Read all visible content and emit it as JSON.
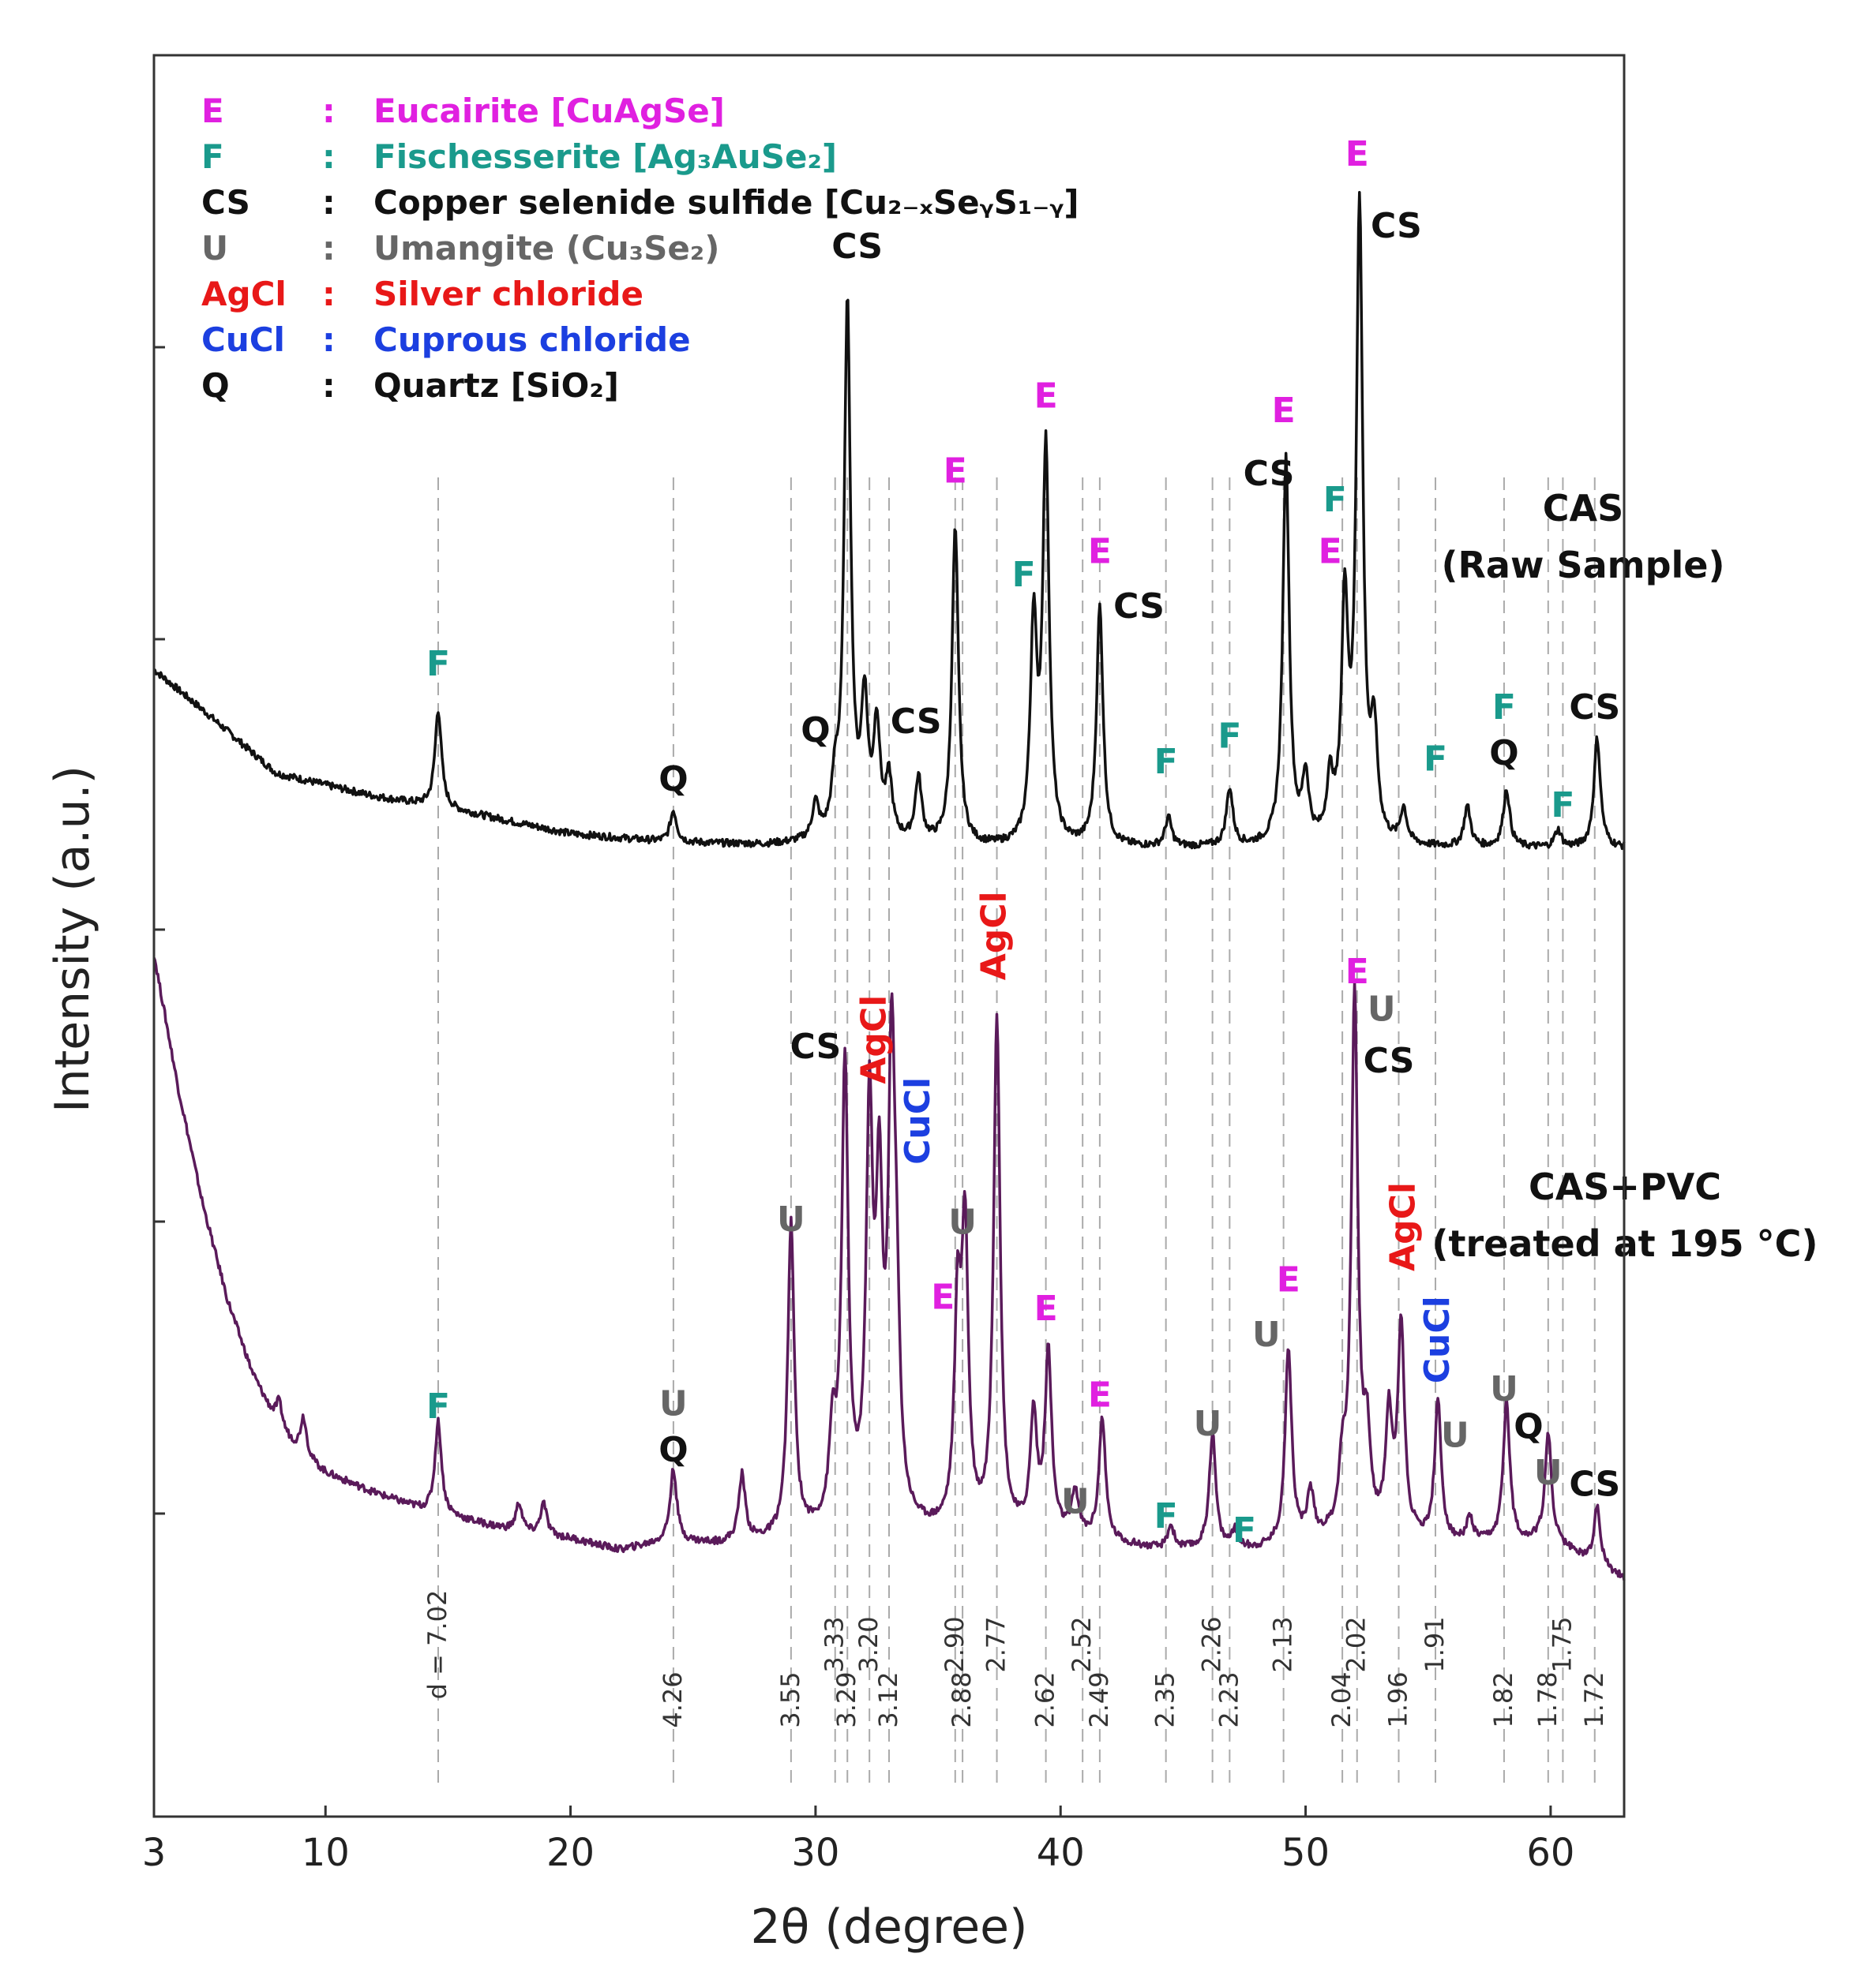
{
  "chart_data": {
    "type": "line",
    "xlabel": "2θ (degree)",
    "ylabel": "Intensity (a.u.)",
    "xlim": [
      3,
      63
    ],
    "x_ticks": [
      "3",
      "10",
      "20",
      "30",
      "40",
      "50",
      "60"
    ],
    "colors": {
      "E": "#e020e0",
      "F": "#1a9a8c",
      "CS": "#111111",
      "U": "#666666",
      "AgCl": "#e81818",
      "CuCl": "#1c3fe0",
      "Q": "#111111",
      "raw": "#111111",
      "treated": "#5a1a5a"
    },
    "legend": [
      {
        "code": "E",
        "sep": ":",
        "name": "Eucairite [CuAgSe]",
        "key": "E"
      },
      {
        "code": "F",
        "sep": ":",
        "name": "Fischesserite [Ag₃AuSe₂]",
        "key": "F"
      },
      {
        "code": "CS",
        "sep": ":",
        "name": "Copper selenide sulfide [Cu₂₋ₓSeᵧS₁₋ᵧ]",
        "key": "CS"
      },
      {
        "code": "U",
        "sep": ":",
        "name": "Umangite (Cu₃Se₂)",
        "key": "U"
      },
      {
        "code": "AgCl",
        "sep": ":",
        "name": "Silver chloride",
        "key": "AgCl"
      },
      {
        "code": "CuCl",
        "sep": ":",
        "name": "Cuprous chloride",
        "key": "CuCl"
      },
      {
        "code": "Q",
        "sep": ":",
        "name": "Quartz [SiO₂]",
        "key": "Q"
      }
    ],
    "series": [
      {
        "name": "CAS (Raw Sample)",
        "label_line1": "CAS",
        "label_line2": "(Raw Sample)",
        "baseline": [
          [
            3,
            0.62
          ],
          [
            5,
            0.48
          ],
          [
            8,
            0.26
          ],
          [
            12,
            0.18
          ],
          [
            16,
            0.12
          ],
          [
            20,
            0.05
          ],
          [
            24,
            0.02
          ],
          [
            28,
            0.01
          ],
          [
            32,
            0.02
          ],
          [
            36,
            0.0
          ],
          [
            40,
            0.0
          ],
          [
            44,
            0.0
          ],
          [
            48,
            0.0
          ],
          [
            52,
            0.0
          ],
          [
            56,
            0.0
          ],
          [
            60,
            0.0
          ],
          [
            63,
            0.0
          ]
        ],
        "peaks": [
          [
            14.6,
            0.34
          ],
          [
            24.2,
            0.11
          ],
          [
            30.0,
            0.12
          ],
          [
            30.8,
            0.16
          ],
          [
            31.3,
            1.85
          ],
          [
            32.0,
            0.45
          ],
          [
            32.5,
            0.38
          ],
          [
            33.0,
            0.2
          ],
          [
            34.2,
            0.22
          ],
          [
            35.7,
            1.1
          ],
          [
            38.9,
            0.75
          ],
          [
            39.4,
            1.36
          ],
          [
            41.6,
            0.83
          ],
          [
            44.4,
            0.1
          ],
          [
            46.9,
            0.2
          ],
          [
            49.2,
            1.34
          ],
          [
            50.0,
            0.22
          ],
          [
            51.0,
            0.2
          ],
          [
            51.6,
            0.8
          ],
          [
            52.2,
            2.2
          ],
          [
            52.8,
            0.35
          ],
          [
            54.0,
            0.12
          ],
          [
            56.6,
            0.14
          ],
          [
            58.2,
            0.2
          ],
          [
            60.3,
            0.06
          ],
          [
            61.9,
            0.38
          ]
        ],
        "line_label_offset": 0
      },
      {
        "name": "CAS+PVC (treated at 195 °C)",
        "label_line1": "CAS+PVC",
        "label_line2": "(treated at 195 °C)",
        "baseline": [
          [
            3,
            2.07
          ],
          [
            4,
            1.6
          ],
          [
            5,
            1.2
          ],
          [
            6,
            0.87
          ],
          [
            7,
            0.62
          ],
          [
            8,
            0.44
          ],
          [
            9,
            0.33
          ],
          [
            10,
            0.27
          ],
          [
            12,
            0.2
          ],
          [
            14,
            0.14
          ],
          [
            16,
            0.1
          ],
          [
            18,
            0.06
          ],
          [
            20,
            0.04
          ],
          [
            22,
            0.0
          ],
          [
            24,
            0.03
          ],
          [
            26,
            0.02
          ],
          [
            28,
            0.03
          ],
          [
            32,
            0.08
          ],
          [
            36,
            0.05
          ],
          [
            40,
            0.05
          ],
          [
            44,
            0.0
          ],
          [
            48,
            0.0
          ],
          [
            52,
            0.05
          ],
          [
            56,
            0.02
          ],
          [
            60,
            0.03
          ],
          [
            63,
            -0.1
          ]
        ],
        "peaks": [
          [
            8.1,
            0.09
          ],
          [
            9.1,
            0.14
          ],
          [
            14.6,
            0.32
          ],
          [
            17.9,
            0.1
          ],
          [
            18.9,
            0.11
          ],
          [
            24.2,
            0.25
          ],
          [
            27.0,
            0.23
          ],
          [
            29.0,
            1.08
          ],
          [
            30.7,
            0.3
          ],
          [
            31.2,
            1.58
          ],
          [
            32.2,
            1.36
          ],
          [
            32.6,
            1.05
          ],
          [
            33.1,
            1.5
          ],
          [
            33.3,
            0.55
          ],
          [
            35.8,
            0.72
          ],
          [
            36.1,
            1.0
          ],
          [
            37.4,
            1.78
          ],
          [
            38.9,
            0.4
          ],
          [
            39.5,
            0.62
          ],
          [
            40.6,
            0.15
          ],
          [
            41.7,
            0.42
          ],
          [
            44.5,
            0.08
          ],
          [
            46.2,
            0.4
          ],
          [
            47.1,
            0.06
          ],
          [
            49.3,
            0.68
          ],
          [
            50.2,
            0.16
          ],
          [
            51.5,
            0.2
          ],
          [
            52.0,
            1.86
          ],
          [
            52.5,
            0.3
          ],
          [
            53.4,
            0.4
          ],
          [
            53.9,
            0.73
          ],
          [
            55.4,
            0.48
          ],
          [
            56.7,
            0.08
          ],
          [
            58.2,
            0.49
          ],
          [
            59.9,
            0.37
          ],
          [
            61.9,
            0.2
          ]
        ],
        "line_label_offset": 1
      }
    ],
    "d_spacings": [
      {
        "x": 14.6,
        "text": "d = 7.02",
        "row": 0
      },
      {
        "x": 24.2,
        "text": "4.26",
        "row": 1
      },
      {
        "x": 29.0,
        "text": "3.55",
        "row": 1
      },
      {
        "x": 30.8,
        "text": "3.33",
        "row": 0
      },
      {
        "x": 31.3,
        "text": "3.29",
        "row": 1
      },
      {
        "x": 32.2,
        "text": "3.20",
        "row": 0
      },
      {
        "x": 33.0,
        "text": "3.12",
        "row": 1
      },
      {
        "x": 35.7,
        "text": "2.90",
        "row": 0
      },
      {
        "x": 36.0,
        "text": "2.88",
        "row": 1
      },
      {
        "x": 37.4,
        "text": "2.77",
        "row": 0
      },
      {
        "x": 39.4,
        "text": "2.62",
        "row": 1
      },
      {
        "x": 40.9,
        "text": "2.52",
        "row": 0
      },
      {
        "x": 41.6,
        "text": "2.49",
        "row": 1
      },
      {
        "x": 44.3,
        "text": "2.35",
        "row": 1
      },
      {
        "x": 46.2,
        "text": "2.26",
        "row": 0
      },
      {
        "x": 46.9,
        "text": "2.23",
        "row": 1
      },
      {
        "x": 49.1,
        "text": "2.13",
        "row": 0
      },
      {
        "x": 51.5,
        "text": "2.04",
        "row": 1
      },
      {
        "x": 52.1,
        "text": "2.02",
        "row": 0
      },
      {
        "x": 53.8,
        "text": "1.96",
        "row": 1
      },
      {
        "x": 55.3,
        "text": "1.91",
        "row": 0
      },
      {
        "x": 58.1,
        "text": "1.82",
        "row": 1
      },
      {
        "x": 59.9,
        "text": "1.78",
        "row": 1
      },
      {
        "x": 60.5,
        "text": "1.75",
        "row": 0
      },
      {
        "x": 61.8,
        "text": "1.72",
        "row": 1
      }
    ],
    "peak_labels": [
      {
        "series": 0,
        "x": 14.6,
        "y": 0.6,
        "text": "F",
        "key": "F"
      },
      {
        "series": 0,
        "x": 24.2,
        "y": 0.2,
        "text": "Q",
        "key": "Q"
      },
      {
        "series": 0,
        "x": 30.0,
        "y": 0.37,
        "text": "Q",
        "key": "Q"
      },
      {
        "series": 0,
        "x": 31.7,
        "y": 2.05,
        "text": "CS",
        "key": "CS"
      },
      {
        "series": 0,
        "x": 34.1,
        "y": 0.4,
        "text": "CS",
        "key": "CS"
      },
      {
        "series": 0,
        "x": 35.7,
        "y": 1.27,
        "text": "E",
        "key": "E"
      },
      {
        "series": 0,
        "x": 38.5,
        "y": 0.91,
        "text": "F",
        "key": "F"
      },
      {
        "series": 0,
        "x": 39.4,
        "y": 1.53,
        "text": "E",
        "key": "E"
      },
      {
        "series": 0,
        "x": 41.6,
        "y": 0.99,
        "text": "E",
        "key": "E"
      },
      {
        "series": 0,
        "x": 43.2,
        "y": 0.8,
        "text": "CS",
        "key": "CS"
      },
      {
        "series": 0,
        "x": 44.3,
        "y": 0.26,
        "text": "F",
        "key": "F"
      },
      {
        "series": 0,
        "x": 46.9,
        "y": 0.35,
        "text": "F",
        "key": "F"
      },
      {
        "series": 0,
        "x": 48.5,
        "y": 1.26,
        "text": "CS",
        "key": "CS"
      },
      {
        "series": 0,
        "x": 49.1,
        "y": 1.48,
        "text": "E",
        "key": "E"
      },
      {
        "series": 0,
        "x": 51.2,
        "y": 1.17,
        "text": "F",
        "key": "F"
      },
      {
        "series": 0,
        "x": 51.0,
        "y": 0.99,
        "text": "E",
        "key": "E"
      },
      {
        "series": 0,
        "x": 52.1,
        "y": 2.37,
        "text": "E",
        "key": "E"
      },
      {
        "series": 0,
        "x": 53.7,
        "y": 2.12,
        "text": "CS",
        "key": "CS"
      },
      {
        "series": 0,
        "x": 55.3,
        "y": 0.27,
        "text": "F",
        "key": "F"
      },
      {
        "series": 0,
        "x": 58.1,
        "y": 0.45,
        "text": "F",
        "key": "F"
      },
      {
        "series": 0,
        "x": 58.1,
        "y": 0.29,
        "text": "Q",
        "key": "Q"
      },
      {
        "series": 0,
        "x": 60.5,
        "y": 0.11,
        "text": "F",
        "key": "F"
      },
      {
        "series": 0,
        "x": 61.8,
        "y": 0.45,
        "text": "CS",
        "key": "CS"
      },
      {
        "series": 1,
        "x": 14.6,
        "y": 0.46,
        "text": "F",
        "key": "F"
      },
      {
        "series": 1,
        "x": 24.2,
        "y": 0.47,
        "text": "U",
        "key": "U"
      },
      {
        "series": 1,
        "x": 24.2,
        "y": 0.31,
        "text": "Q",
        "key": "Q"
      },
      {
        "series": 1,
        "x": 29.0,
        "y": 1.11,
        "text": "U",
        "key": "U"
      },
      {
        "series": 1,
        "x": 30.0,
        "y": 1.71,
        "text": "CS",
        "key": "CS"
      },
      {
        "series": 1,
        "x": 35.2,
        "y": 0.84,
        "text": "E",
        "key": "E"
      },
      {
        "series": 1,
        "x": 36.0,
        "y": 1.1,
        "text": "U",
        "key": "U"
      },
      {
        "series": 1,
        "x": 39.4,
        "y": 0.8,
        "text": "E",
        "key": "E"
      },
      {
        "series": 1,
        "x": 40.6,
        "y": 0.13,
        "text": "U",
        "key": "U"
      },
      {
        "series": 1,
        "x": 41.6,
        "y": 0.5,
        "text": "E",
        "key": "E"
      },
      {
        "series": 1,
        "x": 44.3,
        "y": 0.08,
        "text": "F",
        "key": "F"
      },
      {
        "series": 1,
        "x": 46.0,
        "y": 0.4,
        "text": "U",
        "key": "U"
      },
      {
        "series": 1,
        "x": 47.5,
        "y": 0.03,
        "text": "F",
        "key": "F"
      },
      {
        "series": 1,
        "x": 48.4,
        "y": 0.71,
        "text": "U",
        "key": "U"
      },
      {
        "series": 1,
        "x": 49.3,
        "y": 0.9,
        "text": "E",
        "key": "E"
      },
      {
        "series": 1,
        "x": 52.1,
        "y": 1.97,
        "text": "E",
        "key": "E"
      },
      {
        "series": 1,
        "x": 53.1,
        "y": 1.84,
        "text": "U",
        "key": "U"
      },
      {
        "series": 1,
        "x": 53.4,
        "y": 1.66,
        "text": "CS",
        "key": "CS"
      },
      {
        "series": 1,
        "x": 56.1,
        "y": 0.36,
        "text": "U",
        "key": "U"
      },
      {
        "series": 1,
        "x": 58.1,
        "y": 0.52,
        "text": "U",
        "key": "U"
      },
      {
        "series": 1,
        "x": 59.1,
        "y": 0.39,
        "text": "Q",
        "key": "Q"
      },
      {
        "series": 1,
        "x": 59.9,
        "y": 0.23,
        "text": "U",
        "key": "U"
      },
      {
        "series": 1,
        "x": 61.8,
        "y": 0.19,
        "text": "CS",
        "key": "CS"
      }
    ],
    "rotated_labels": [
      {
        "series": 1,
        "x": 32.4,
        "y": 1.62,
        "text": "AgCl",
        "key": "AgCl"
      },
      {
        "series": 1,
        "x": 34.2,
        "y": 1.34,
        "text": "CuCl",
        "key": "CuCl"
      },
      {
        "series": 1,
        "x": 37.3,
        "y": 1.98,
        "text": "AgCl",
        "key": "AgCl"
      },
      {
        "series": 1,
        "x": 54.0,
        "y": 0.97,
        "text": "AgCl",
        "key": "AgCl"
      },
      {
        "series": 1,
        "x": 55.4,
        "y": 0.58,
        "text": "CuCl",
        "key": "CuCl"
      }
    ]
  }
}
